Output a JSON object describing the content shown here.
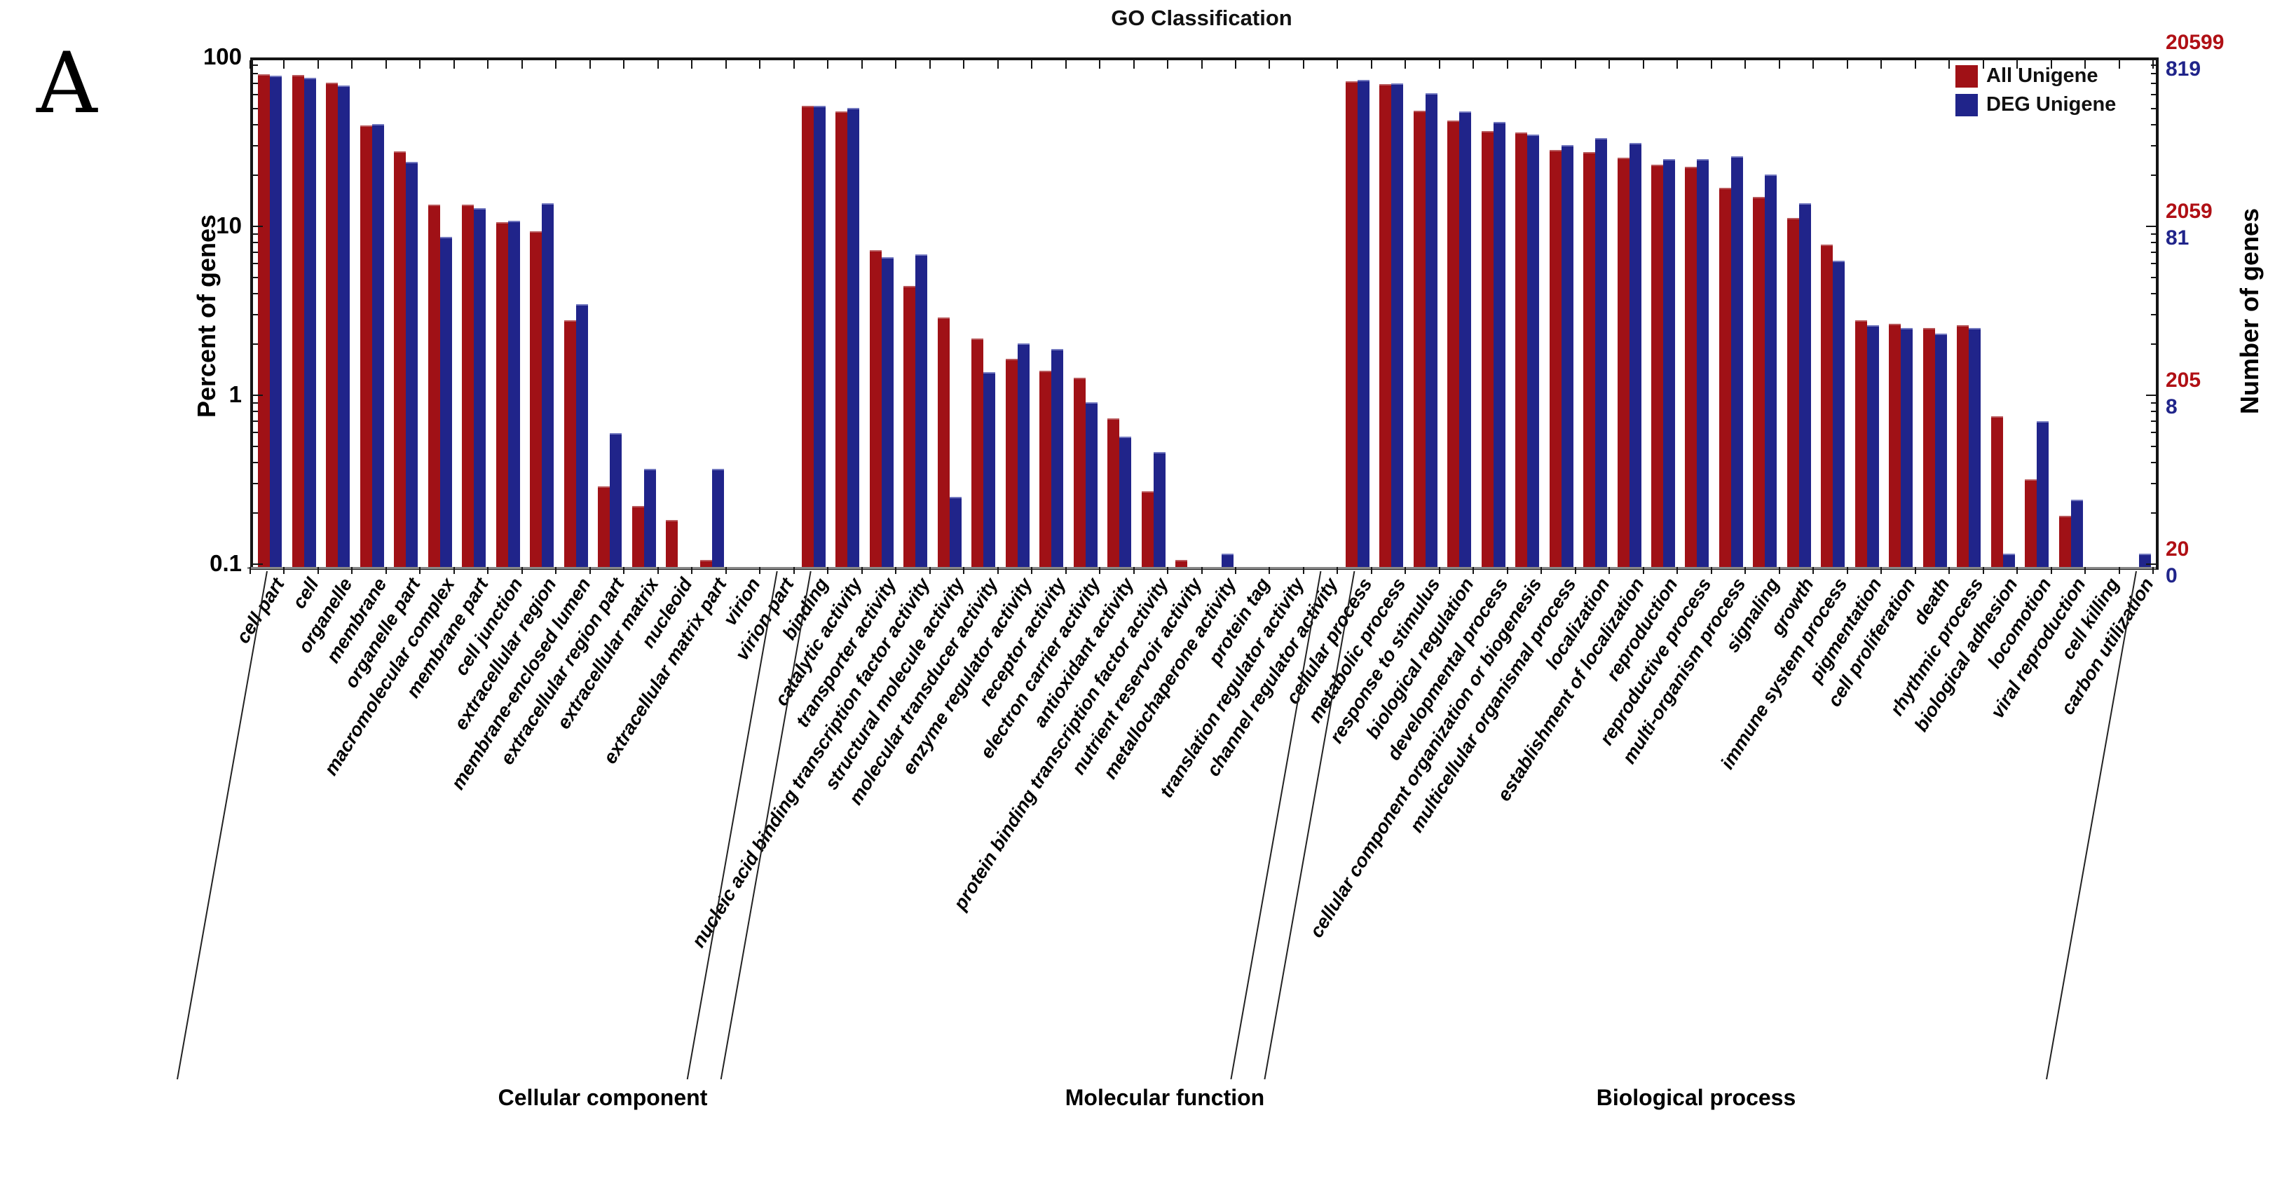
{
  "figure_label": "A",
  "title": "GO Classification",
  "legend": [
    {
      "label": "All Unigene",
      "color": "#a01116"
    },
    {
      "label": "DEG Unigene",
      "color": "#20248a"
    }
  ],
  "left_axis": {
    "label": "Percent of genes",
    "tick_labels": [
      "100",
      "10",
      "1",
      "0.1"
    ]
  },
  "right_axis": {
    "label": "Number of genes",
    "tick_pairs": [
      {
        "red": "20599",
        "blue": "819",
        "value": 100
      },
      {
        "red": "2059",
        "blue": "81",
        "value": 10
      },
      {
        "red": "205",
        "blue": "8",
        "value": 1
      },
      {
        "red": "20",
        "blue": "0",
        "value": 0.1
      }
    ]
  },
  "chart_data": {
    "type": "bar",
    "y_scale": "log",
    "ylim": [
      0.1,
      100
    ],
    "ylabel": "Percent of genes",
    "ylabel_right": "Number of genes",
    "grid": false,
    "legend_position": "top-right",
    "groups": [
      {
        "label": "Cellular component",
        "count": 16,
        "label_cx": 860
      },
      {
        "label": "Molecular function",
        "count": 16,
        "label_cx": 1662
      },
      {
        "label": "Biological process",
        "count": 24,
        "label_cx": 2420
      }
    ],
    "categories": [
      "cell part",
      "cell",
      "organelle",
      "membrane",
      "organelle part",
      "macromolecular complex",
      "membrane part",
      "cell junction",
      "extracellular region",
      "membrane-enclosed lumen",
      "extracellular region part",
      "extracellular matrix",
      "nucleoid",
      "extracellular matrix part",
      "virion",
      "virion part",
      "binding",
      "catalytic activity",
      "transporter activity",
      "nucleic acid binding transcription factor activity",
      "structural molecule activity",
      "molecular transducer activity",
      "enzyme regulator activity",
      "receptor activity",
      "electron carrier activity",
      "antioxidant activity",
      "protein binding transcription factor activity",
      "nutrient reservoir activity",
      "metallochaperone activity",
      "protein tag",
      "translation regulator activity",
      "channel regulator activity",
      "cellular process",
      "metabolic process",
      "response to stimulus",
      "biological regulation",
      "developmental process",
      "cellular component organization or biogenesis",
      "multicellular organismal process",
      "localization",
      "establishment of localization",
      "reproduction",
      "reproductive process",
      "multi-organism process",
      "signaling",
      "growth",
      "immune system process",
      "pigmentation",
      "cell proliferation",
      "death",
      "rhythmic process",
      "biological adhesion",
      "locomotion",
      "viral reproduction",
      "cell killing",
      "carbon utilization"
    ],
    "series": [
      {
        "name": "All Unigene",
        "color": "#a01116",
        "values": [
          83,
          82,
          74,
          41,
          29,
          14,
          14,
          11,
          9.7,
          2.9,
          0.3,
          0.23,
          0.19,
          0.11,
          0,
          0,
          54,
          50,
          7.5,
          4.6,
          3.0,
          2.25,
          1.7,
          1.45,
          1.32,
          0.76,
          0.28,
          0.11,
          0,
          0,
          0,
          0,
          75,
          72,
          50.5,
          44,
          38,
          37.5,
          29.5,
          28.5,
          26.5,
          24,
          23.5,
          17.5,
          15.5,
          11.6,
          8.1,
          2.9,
          2.75,
          2.6,
          2.7,
          0.78,
          0.33,
          0.2,
          0,
          0
        ]
      },
      {
        "name": "DEG Unigene",
        "color": "#20248a",
        "values": [
          81,
          79,
          71,
          42,
          25,
          9,
          13.3,
          11.2,
          14.2,
          3.6,
          0.62,
          0.38,
          0,
          0.38,
          0,
          0,
          53.5,
          52,
          6.8,
          7.1,
          0.26,
          1.43,
          2.1,
          1.95,
          0.94,
          0.59,
          0.48,
          0,
          0.12,
          0,
          0,
          0,
          76.5,
          73,
          64,
          50,
          43,
          36.5,
          31.5,
          34.5,
          32.5,
          26,
          26,
          27,
          21,
          14.3,
          6.5,
          2.7,
          2.6,
          2.4,
          2.6,
          0.12,
          0.73,
          0.25,
          0,
          0.12
        ]
      }
    ]
  }
}
